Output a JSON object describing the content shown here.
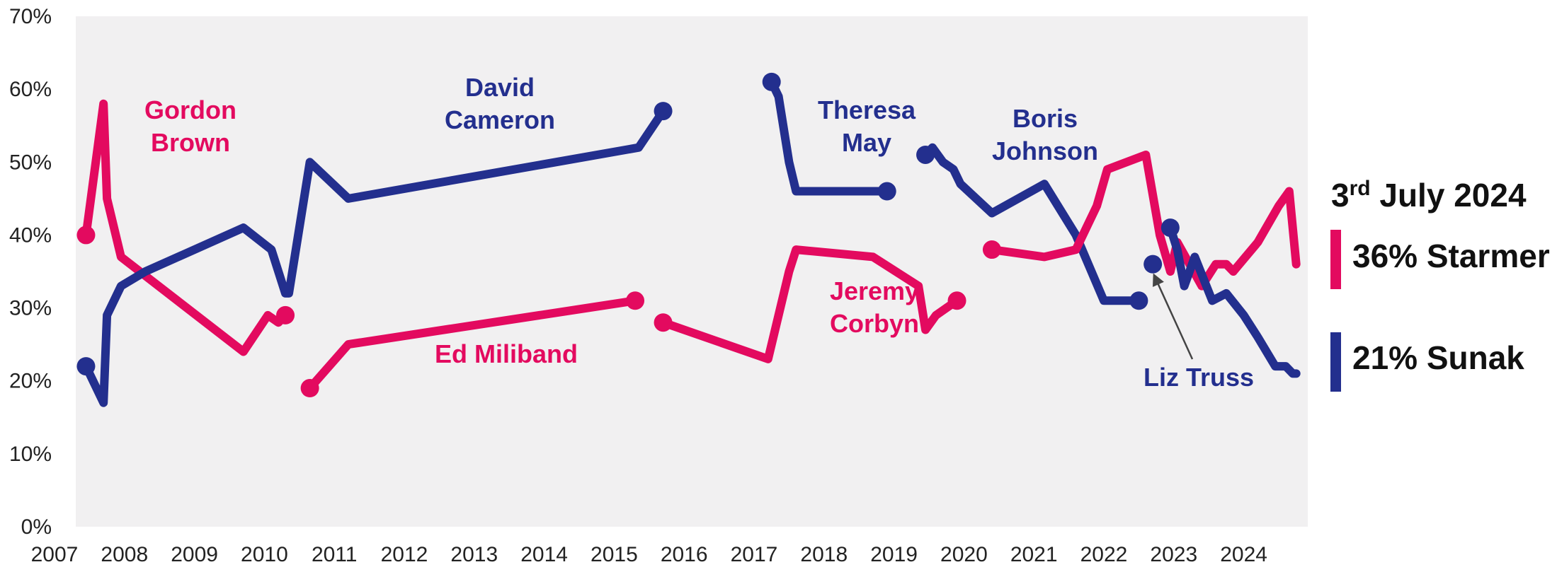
{
  "chart_data": {
    "type": "line",
    "title": "",
    "xlabel": "",
    "ylabel": "",
    "xlim": [
      2007,
      2024.6
    ],
    "ylim": [
      0,
      70
    ],
    "x_ticks": [
      "2007",
      "2008",
      "2009",
      "2010",
      "2011",
      "2012",
      "2013",
      "2014",
      "2015",
      "2016",
      "2017",
      "2018",
      "2019",
      "2020",
      "2021",
      "2022",
      "2023",
      "2024"
    ],
    "y_ticks": [
      "0%",
      "10%",
      "20%",
      "30%",
      "40%",
      "50%",
      "60%",
      "70%"
    ],
    "grid": false,
    "colors": {
      "conservative": "#232f8e",
      "labour": "#e30a5f",
      "background": "#f1f0f1"
    },
    "series": [
      {
        "name": "Gordon Brown",
        "party": "labour",
        "label_lines": [
          "Gordon",
          "Brown"
        ],
        "points": [
          [
            2007.45,
            40
          ],
          [
            2007.7,
            58
          ],
          [
            2007.75,
            45
          ],
          [
            2007.95,
            37
          ],
          [
            2009.7,
            24
          ],
          [
            2010.05,
            29
          ],
          [
            2010.2,
            28
          ],
          [
            2010.3,
            29
          ]
        ]
      },
      {
        "name": "David Cameron",
        "party": "conservative",
        "label_lines": [
          "David",
          "Cameron"
        ],
        "points": [
          [
            2007.45,
            22
          ],
          [
            2007.7,
            17
          ],
          [
            2007.75,
            29
          ],
          [
            2007.95,
            33
          ],
          [
            2008.3,
            35
          ],
          [
            2009.7,
            41
          ],
          [
            2010.1,
            38
          ],
          [
            2010.3,
            32
          ],
          [
            2010.35,
            32
          ],
          [
            2010.65,
            50
          ],
          [
            2011.2,
            45
          ],
          [
            2015.35,
            52
          ],
          [
            2015.7,
            57
          ]
        ]
      },
      {
        "name": "Ed Miliband",
        "party": "labour",
        "label_lines": [
          "Ed Miliband"
        ],
        "points": [
          [
            2010.65,
            19
          ],
          [
            2011.2,
            25
          ],
          [
            2015.3,
            31
          ]
        ]
      },
      {
        "name": "Theresa May",
        "party": "conservative",
        "label_lines": [
          "Theresa",
          "May"
        ],
        "points": [
          [
            2017.25,
            61
          ],
          [
            2017.35,
            59
          ],
          [
            2017.5,
            50
          ],
          [
            2017.6,
            46
          ],
          [
            2018.9,
            46
          ]
        ]
      },
      {
        "name": "Jeremy Corbyn",
        "party": "labour",
        "label_lines": [
          "Jeremy",
          "Corbyn"
        ],
        "points": [
          [
            2015.7,
            28
          ],
          [
            2017.2,
            23
          ],
          [
            2017.5,
            35
          ],
          [
            2017.6,
            38
          ],
          [
            2018.7,
            37
          ],
          [
            2019.35,
            33
          ],
          [
            2019.45,
            27
          ],
          [
            2019.6,
            29
          ],
          [
            2019.75,
            30
          ],
          [
            2019.9,
            31
          ]
        ]
      },
      {
        "name": "Boris Johnson",
        "party": "conservative",
        "label_lines": [
          "Boris",
          "Johnson"
        ],
        "points": [
          [
            2019.45,
            51
          ],
          [
            2019.55,
            52
          ],
          [
            2019.7,
            50
          ],
          [
            2019.85,
            49
          ],
          [
            2019.95,
            47
          ],
          [
            2020.4,
            43
          ],
          [
            2021.15,
            47
          ],
          [
            2021.6,
            40
          ],
          [
            2022.0,
            31
          ],
          [
            2022.5,
            31
          ]
        ]
      },
      {
        "name": "Keir Starmer",
        "party": "labour",
        "points": [
          [
            2020.4,
            38
          ],
          [
            2021.15,
            37
          ],
          [
            2021.6,
            38
          ],
          [
            2021.9,
            44
          ],
          [
            2022.05,
            49
          ],
          [
            2022.6,
            51
          ],
          [
            2022.8,
            40
          ],
          [
            2022.95,
            35
          ],
          [
            2023.05,
            39
          ],
          [
            2023.4,
            33
          ],
          [
            2023.6,
            36
          ],
          [
            2023.75,
            36
          ],
          [
            2023.85,
            35
          ],
          [
            2024.2,
            39
          ],
          [
            2024.5,
            44
          ],
          [
            2024.65,
            46
          ],
          [
            2024.75,
            36
          ]
        ]
      },
      {
        "name": "Liz Truss",
        "party": "conservative",
        "label_lines": [
          "Liz Truss"
        ],
        "points": [
          [
            2022.7,
            36
          ]
        ]
      },
      {
        "name": "Rishi Sunak",
        "party": "conservative",
        "points": [
          [
            2022.95,
            41
          ],
          [
            2023.05,
            38
          ],
          [
            2023.15,
            33
          ],
          [
            2023.3,
            37
          ],
          [
            2023.55,
            31
          ],
          [
            2023.75,
            32
          ],
          [
            2024.0,
            29
          ],
          [
            2024.2,
            26
          ],
          [
            2024.45,
            22
          ],
          [
            2024.6,
            22
          ],
          [
            2024.7,
            21
          ],
          [
            2024.75,
            21
          ]
        ]
      }
    ],
    "annotations": [
      {
        "text": "Liz Truss",
        "arrow_to": [
          2022.7,
          36
        ]
      }
    ]
  },
  "side_panel": {
    "title_main": "3",
    "title_sup": "rd",
    "title_rest": " July 2024",
    "entries": [
      {
        "text": "36% Starmer",
        "party": "labour"
      },
      {
        "text": "21% Sunak",
        "party": "conservative"
      }
    ]
  }
}
